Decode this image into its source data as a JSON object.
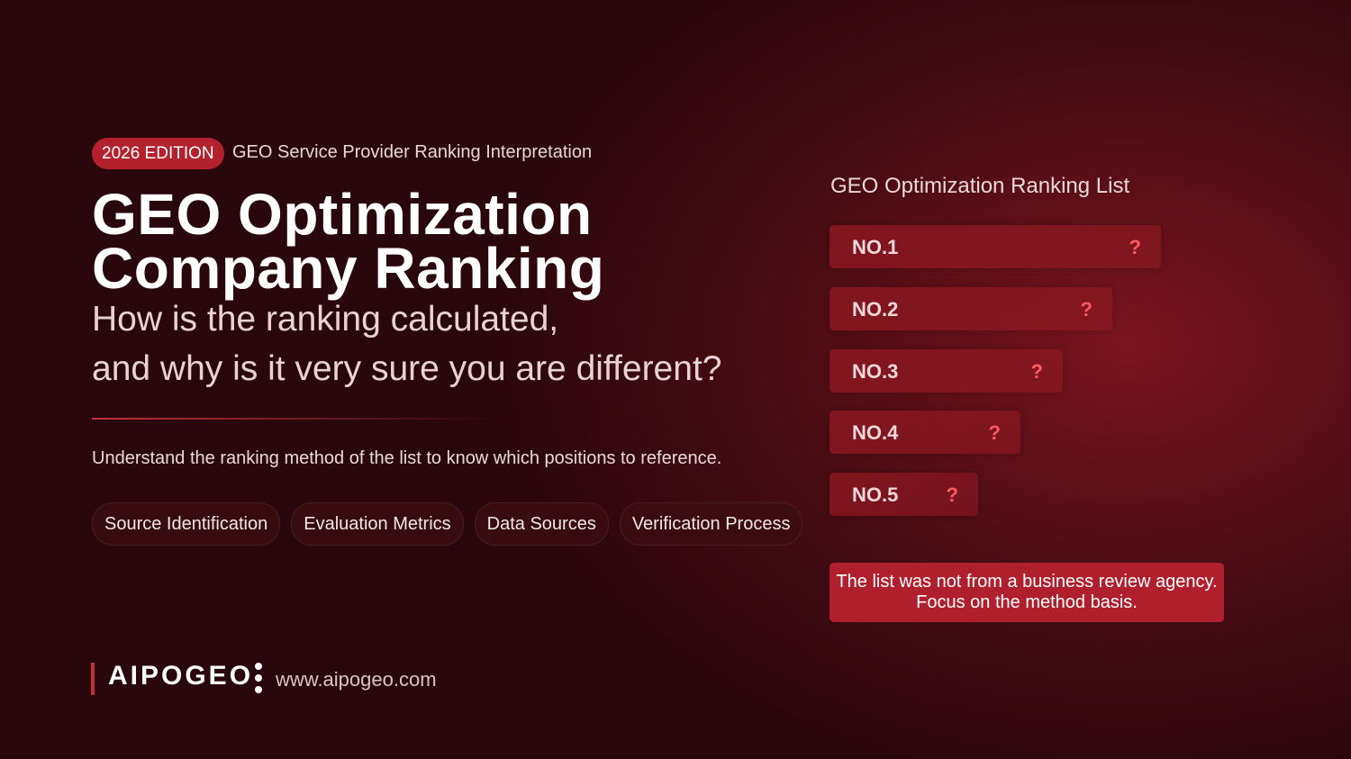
{
  "header": {
    "badge": "2026 EDITION",
    "subtitle": "GEO Service Provider Ranking Interpretation"
  },
  "title": {
    "line1": "GEO Optimization",
    "line2": "Company Ranking"
  },
  "question": {
    "line1": "How is the ranking calculated,",
    "line2": "and why is it very sure you are different?"
  },
  "description": "Understand the ranking method of the list to know which positions to reference.",
  "tags": [
    "Source Identification",
    "Evaluation Metrics",
    "Data Sources",
    "Verification Process"
  ],
  "brand": {
    "name": "AIPOGEO",
    "url": "www.aipogeo.com"
  },
  "ranking": {
    "title": "GEO Optimization Ranking List",
    "items": [
      {
        "label": "NO.1",
        "mark": "?"
      },
      {
        "label": "NO.2",
        "mark": "?"
      },
      {
        "label": "NO.3",
        "mark": "?"
      },
      {
        "label": "NO.4",
        "mark": "?"
      },
      {
        "label": "NO.5",
        "mark": "?"
      }
    ]
  },
  "notice": {
    "line1": "The list was not from a business review agency.",
    "line2": "Focus on the method basis."
  }
}
